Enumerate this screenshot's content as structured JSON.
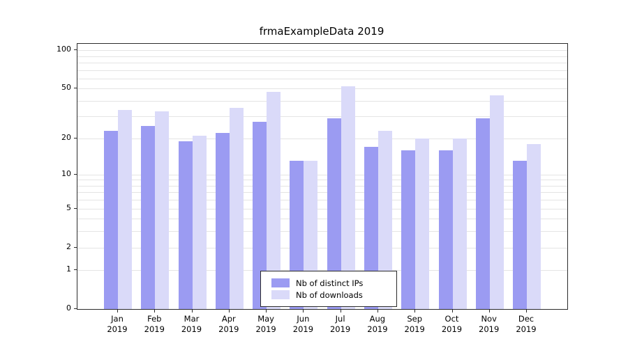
{
  "chart_data": {
    "type": "bar",
    "title": "frmaExampleData 2019",
    "xlabel": "",
    "ylabel": "",
    "categories": [
      "Jan",
      "Feb",
      "Mar",
      "Apr",
      "May",
      "Jun",
      "Jul",
      "Aug",
      "Sep",
      "Oct",
      "Nov",
      "Dec"
    ],
    "category_year": "2019",
    "series": [
      {
        "name": "Nb of distinct IPs",
        "color": "#9b9bf2",
        "values": [
          23,
          25,
          19,
          22,
          27,
          13,
          29,
          17,
          16,
          16,
          29,
          13
        ]
      },
      {
        "name": "Nb of downloads",
        "color": "#dadaf9",
        "values": [
          34,
          33,
          21,
          35,
          47,
          13,
          52,
          23,
          20,
          20,
          44,
          18
        ]
      }
    ],
    "yscale": "log1p",
    "yticks": [
      0,
      1,
      2,
      5,
      10,
      20,
      50,
      100
    ],
    "ytop": 112,
    "gridlines": [
      1,
      2,
      3,
      4,
      5,
      6,
      7,
      8,
      9,
      10,
      20,
      30,
      40,
      50,
      60,
      70,
      80,
      90,
      100
    ],
    "grid": "on",
    "legend_position": "bottom-center"
  }
}
